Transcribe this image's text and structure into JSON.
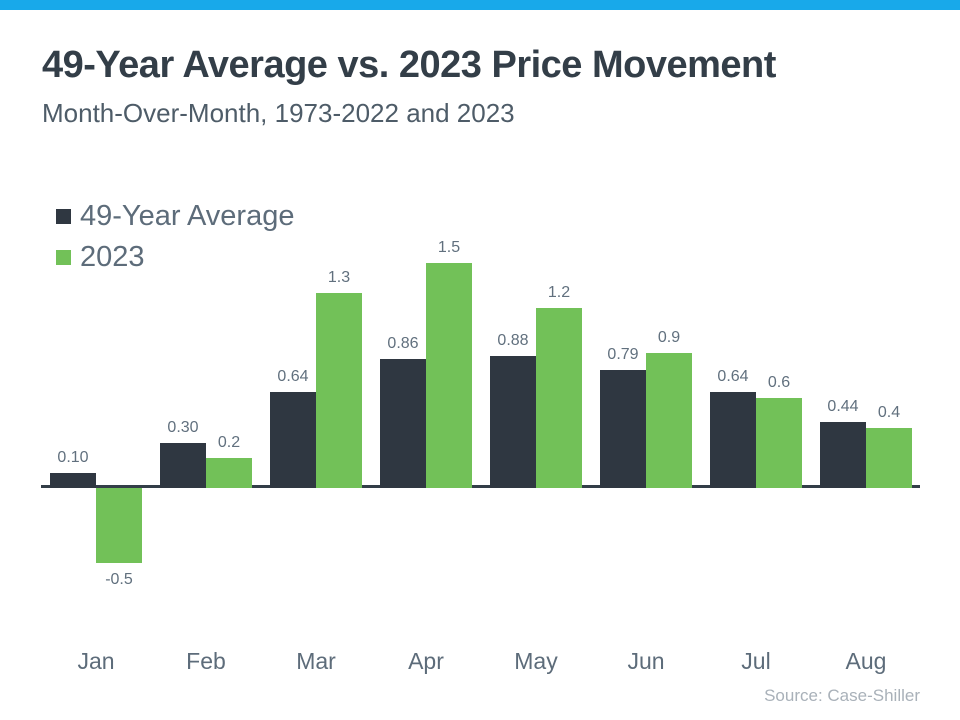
{
  "header": {
    "title": "49-Year Average vs. 2023 Price Movement",
    "subtitle": "Month-Over-Month, 1973-2022 and 2023"
  },
  "legend": [
    {
      "label": "49-Year Average",
      "color": "#2f3741"
    },
    {
      "label": "2023",
      "color": "#72c158"
    }
  ],
  "source": "Source: Case-Shiller",
  "colors": {
    "accent_topbar": "#18a9ea",
    "series_average": "#2f3741",
    "series_2023": "#72c158",
    "axis": "#333e48",
    "title_text": "#333e48",
    "label_text": "#5d6c7a",
    "source_text": "#a9b1b9"
  },
  "chart_data": {
    "type": "bar",
    "title": "49-Year Average vs. 2023 Price Movement",
    "subtitle": "Month-Over-Month, 1973-2022 and 2023",
    "xlabel": "",
    "ylabel": "",
    "ylim": [
      -0.7,
      1.6
    ],
    "grid": false,
    "legend_position": "top-left",
    "categories": [
      "Jan",
      "Feb",
      "Mar",
      "Apr",
      "May",
      "Jun",
      "Jul",
      "Aug"
    ],
    "series": [
      {
        "name": "49-Year Average",
        "color": "#2f3741",
        "values": [
          0.1,
          0.3,
          0.64,
          0.86,
          0.88,
          0.79,
          0.64,
          0.44
        ],
        "labels": [
          "0.10",
          "0.30",
          "0.64",
          "0.86",
          "0.88",
          "0.79",
          "0.64",
          "0.44"
        ]
      },
      {
        "name": "2023",
        "color": "#72c158",
        "values": [
          -0.5,
          0.2,
          1.3,
          1.5,
          1.2,
          0.9,
          0.6,
          0.4
        ],
        "labels": [
          "-0.5",
          "0.2",
          "1.3",
          "1.5",
          "1.2",
          "0.9",
          "0.6",
          "0.4"
        ]
      }
    ]
  }
}
